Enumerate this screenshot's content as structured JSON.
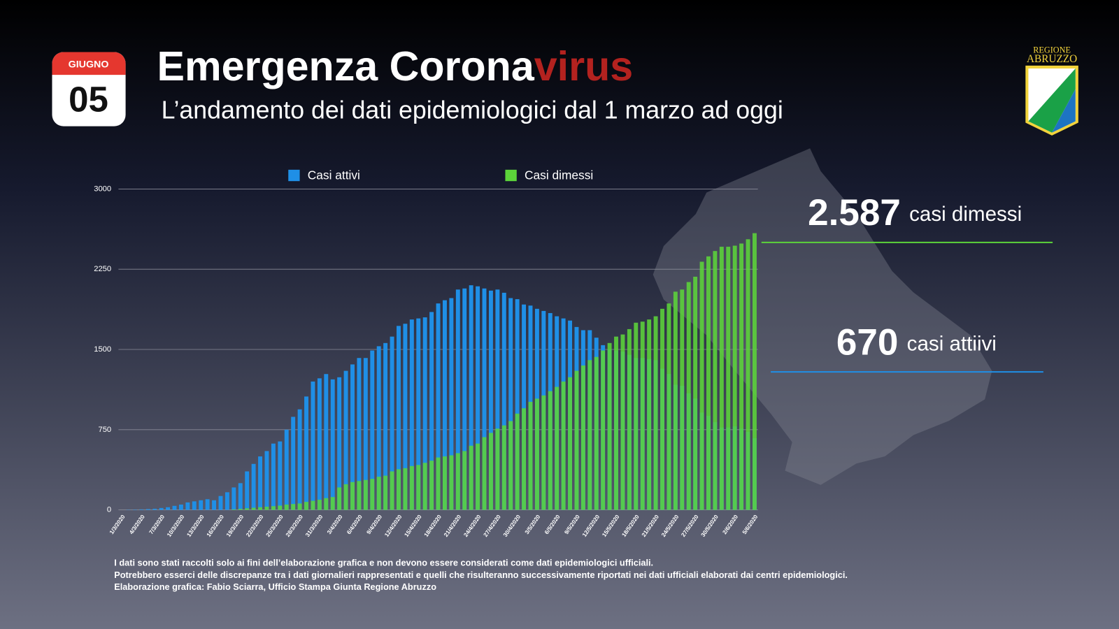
{
  "header": {
    "calendar_month": "GIUGNO",
    "calendar_day": "05",
    "title": "Emergenza Corona",
    "title_highlight": "virus",
    "subtitle": "L’andamento dei dati epidemiologici dal 1 marzo ad oggi",
    "logo": [
      "REGIONE",
      "ABRUZZO"
    ]
  },
  "chart_data": {
    "type": "bar",
    "categories": [
      "1/3/2020",
      null,
      null,
      "4/3/2020",
      null,
      null,
      "7/3/2020",
      null,
      null,
      "10/3/2020",
      null,
      null,
      "13/3/2020",
      null,
      null,
      "16/3/2020",
      null,
      null,
      "19/3/2020",
      null,
      null,
      "22/3/2020",
      null,
      null,
      "25/3/2020",
      null,
      null,
      "28/3/2020",
      null,
      null,
      "31/3/2020",
      null,
      null,
      "3/4/2020",
      null,
      null,
      "6/4/2020",
      null,
      null,
      "9/4/2020",
      null,
      null,
      "12/4/2020",
      null,
      null,
      "15/4/2020",
      null,
      null,
      "18/4/2020",
      null,
      null,
      "21/4/2020",
      null,
      null,
      "24/4/2020",
      null,
      null,
      "27/4/2020",
      null,
      null,
      "30/4/2020",
      null,
      null,
      "3/5/2020",
      null,
      null,
      "6/5/2020",
      null,
      null,
      "9/5/2020",
      null,
      null,
      "12/5/2020",
      null,
      null,
      "15/5/2020",
      null,
      null,
      "18/5/2020",
      null,
      null,
      "21/5/2020",
      null,
      null,
      "24/5/2020",
      null,
      null,
      "27/5/2020",
      null,
      null,
      "30/5/2020",
      null,
      null,
      "2/6/2020",
      null,
      null,
      "5/6/2020"
    ],
    "series": [
      {
        "name": "Casi attivi",
        "color": "#1f8fe6",
        "values": [
          0,
          2,
          3,
          5,
          8,
          11,
          18,
          25,
          38,
          50,
          70,
          80,
          90,
          100,
          90,
          130,
          165,
          210,
          250,
          360,
          430,
          500,
          550,
          620,
          640,
          750,
          870,
          940,
          1060,
          1200,
          1230,
          1270,
          1220,
          1240,
          1300,
          1360,
          1420,
          1420,
          1490,
          1530,
          1560,
          1620,
          1720,
          1740,
          1780,
          1790,
          1800,
          1850,
          1930,
          1960,
          1980,
          2060,
          2070,
          2100,
          2090,
          2070,
          2050,
          2060,
          2030,
          1980,
          1970,
          1920,
          1910,
          1880,
          1860,
          1840,
          1810,
          1790,
          1770,
          1710,
          1680,
          1680,
          1610,
          1540,
          1500,
          1490,
          1480,
          1450,
          1420,
          1420,
          1410,
          1400,
          1320,
          1270,
          1170,
          1160,
          1090,
          1040,
          910,
          880,
          820,
          770,
          770,
          780,
          760,
          730,
          670
        ]
      },
      {
        "name": "Casi dimessi",
        "color": "#5cd43a",
        "values": [
          0,
          0,
          0,
          0,
          0,
          0,
          0,
          0,
          0,
          0,
          0,
          0,
          0,
          0,
          0,
          0,
          0,
          5,
          10,
          15,
          20,
          25,
          30,
          35,
          40,
          50,
          55,
          60,
          75,
          85,
          95,
          110,
          120,
          210,
          240,
          260,
          270,
          280,
          290,
          310,
          320,
          360,
          380,
          390,
          410,
          420,
          440,
          460,
          490,
          500,
          510,
          530,
          550,
          600,
          620,
          680,
          720,
          760,
          790,
          830,
          900,
          950,
          1010,
          1040,
          1070,
          1110,
          1150,
          1200,
          1240,
          1300,
          1350,
          1400,
          1430,
          1490,
          1560,
          1620,
          1640,
          1690,
          1750,
          1760,
          1780,
          1810,
          1880,
          1930,
          2040,
          2060,
          2130,
          2180,
          2320,
          2370,
          2420,
          2460,
          2460,
          2470,
          2490,
          2530,
          2587
        ]
      }
    ],
    "ylim": [
      0,
      3000
    ],
    "yticks": [
      0,
      750,
      1500,
      2250,
      3000
    ],
    "grid": true,
    "annotations": [
      {
        "value": 2587,
        "label": "2.587",
        "text": "casi dimessi",
        "color": "#5cd43a"
      },
      {
        "value": 670,
        "label": "670",
        "text": "casi attiivi",
        "color": "#1f8fe6"
      }
    ]
  },
  "footer": [
    "I dati sono stati raccolti solo ai fini dell’elaborazione grafica e non devono essere considerati come dati epidemiologici ufficiali.",
    "Potrebbero esserci delle discrepanze tra i dati giornalieri rappresentati e quelli che risulteranno successivamente riportati nei dati ufficiali elaborati dai centri epidemiologici.",
    "Elaborazione grafica: Fabio Sciarra, Ufficio Stampa Giunta Regione Abruzzo"
  ]
}
